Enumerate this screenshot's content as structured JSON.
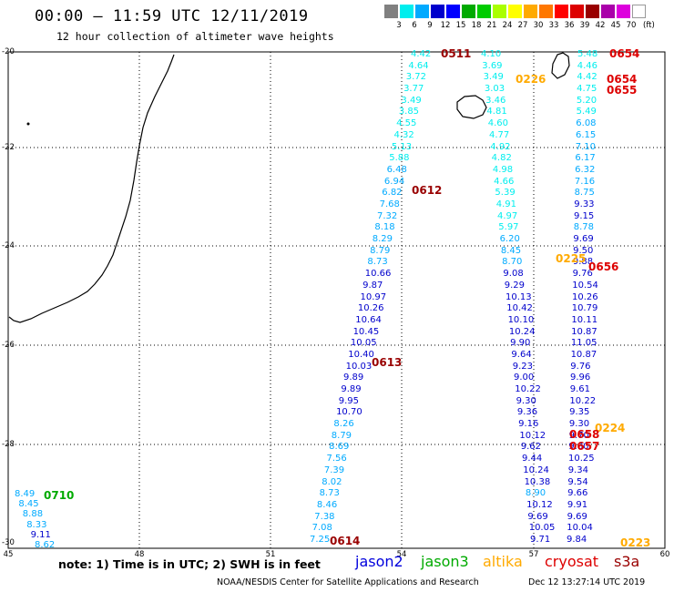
{
  "header": {
    "title": "00:00 – 11:59 UTC 12/11/2019",
    "subtitle": "12 hour collection of altimeter wave heights"
  },
  "legend": {
    "colors": [
      "#808080",
      "#00eeee",
      "#00aaff",
      "#0000cc",
      "#0000ff",
      "#00aa00",
      "#00cc00",
      "#aaff00",
      "#ffff00",
      "#ffaa00",
      "#ff7700",
      "#ff0000",
      "#dd0000",
      "#990000",
      "#aa00aa",
      "#dd00dd",
      "#ffffff"
    ],
    "ticks": [
      "3",
      "6",
      "9",
      "12",
      "15",
      "18",
      "21",
      "24",
      "27",
      "30",
      "33",
      "36",
      "39",
      "42",
      "45",
      "70"
    ],
    "unit": "(ft)"
  },
  "axes": {
    "lat_labels": [
      "-20",
      "-22",
      "-24",
      "-26",
      "-28",
      "-30"
    ],
    "lon_labels": [
      "45",
      "48",
      "51",
      "54",
      "57",
      "60"
    ]
  },
  "tracks": {
    "a": {
      "values": [
        "4.42",
        "4.64",
        "3.72",
        "3.77",
        "3.49",
        "3.85",
        "4.55",
        "4.32",
        "5.13",
        "5.88",
        "6.48",
        "6.94",
        "6.82",
        "7.68",
        "7.32",
        "8.18",
        "8.29",
        "8.79",
        "8.73",
        "10.66",
        "9.87",
        "10.97",
        "10.26",
        "10.64",
        "10.45",
        "10.05",
        "10.40",
        "10.03",
        "9.89",
        "9.89",
        "9.95",
        "10.70",
        "8.26",
        "8.79",
        "8.69",
        "7.56",
        "7.39",
        "8.02",
        "8.73",
        "8.46",
        "7.38",
        "7.08",
        "7.25"
      ]
    },
    "b": {
      "values": [
        "4.10",
        "3.69",
        "3.49",
        "3.03",
        "3.46",
        "4.81",
        "4.60",
        "4.77",
        "4.92",
        "4.82",
        "4.98",
        "4.66",
        "5.39",
        "4.91",
        "4.97",
        "5.97",
        "6.20",
        "8.45",
        "8.70",
        "9.08",
        "9.29",
        "10.13",
        "10.42",
        "10.10",
        "10.24",
        "9.90",
        "9.64",
        "9.23",
        "9.00",
        "10.22",
        "9.30",
        "9.36",
        "9.16",
        "10.12",
        "9.62",
        "9.44",
        "10.24",
        "10.38",
        "8.90",
        "10.12",
        "9.69",
        "10.05",
        "9.71"
      ]
    },
    "c": {
      "values": [
        "5.48",
        "4.46",
        "4.42",
        "4.75",
        "5.20",
        "5.49",
        "6.08",
        "6.15",
        "7.10",
        "6.17",
        "6.32",
        "7.16",
        "8.75",
        "9.33",
        "9.15",
        "8.78",
        "9.69",
        "9.50",
        "9.88",
        "9.76",
        "10.54",
        "10.26",
        "10.79",
        "10.11",
        "10.87",
        "11.05",
        "10.87",
        "9.76",
        "9.96",
        "9.61",
        "10.22",
        "9.35",
        "9.30",
        "9.70",
        "9.80",
        "10.25",
        "9.34",
        "9.54",
        "9.66",
        "9.91",
        "9.69",
        "10.04",
        "9.84"
      ]
    },
    "d": {
      "values": [
        "8.49",
        "8.45",
        "8.88",
        "8.33",
        "9.11",
        "8.62"
      ]
    }
  },
  "passes": [
    {
      "label": "0511",
      "color": "#990000"
    },
    {
      "label": "0654",
      "color": "#dd0000"
    },
    {
      "label": "0226",
      "color": "#ffaa00"
    },
    {
      "label": "0654",
      "color": "#dd0000"
    },
    {
      "label": "0655",
      "color": "#dd0000"
    },
    {
      "label": "0612",
      "color": "#990000"
    },
    {
      "label": "0656",
      "color": "#dd0000"
    },
    {
      "label": "0613",
      "color": "#990000"
    },
    {
      "label": "0224",
      "color": "#ffaa00"
    },
    {
      "label": "0658",
      "color": "#dd0000"
    },
    {
      "label": "0657",
      "color": "#dd0000"
    },
    {
      "label": "0710",
      "color": "#00aa00"
    },
    {
      "label": "0614",
      "color": "#990000"
    },
    {
      "label": "0223",
      "color": "#ffaa00"
    },
    {
      "label": "0225",
      "color": "#ffaa00"
    }
  ],
  "footer": {
    "note": "note: 1) Time is in UTC; 2) SWH is in feet",
    "satellites": [
      {
        "name": "jason2",
        "color": "#0000dd"
      },
      {
        "name": "jason3",
        "color": "#00aa00"
      },
      {
        "name": "altika",
        "color": "#ffaa00"
      },
      {
        "name": "cryosat",
        "color": "#dd0000"
      },
      {
        "name": "s3a",
        "color": "#990000"
      }
    ],
    "credit": "NOAA/NESDIS Center for Satellite Applications and Research",
    "timestamp": "Dec 12 13:27:14 UTC 2019"
  }
}
